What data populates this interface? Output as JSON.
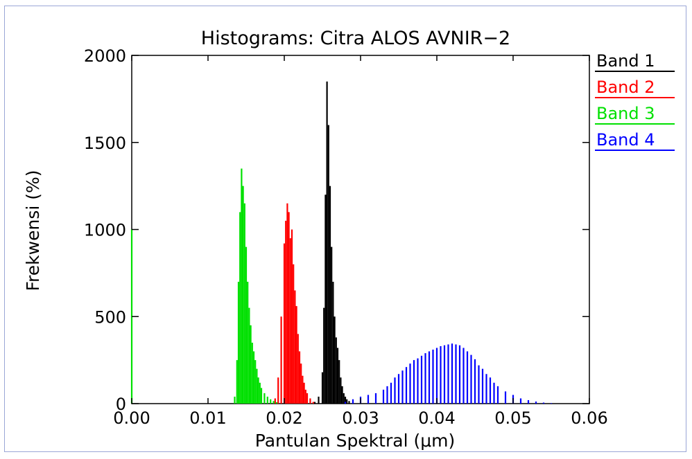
{
  "chart_data": {
    "type": "bar",
    "title": "Histograms: Citra ALOS AVNIR−2",
    "xlabel": "Pantulan Spektral (μm)",
    "ylabel": "Frekwensi (%)",
    "xlim": [
      0.0,
      0.06
    ],
    "ylim": [
      0,
      2000
    ],
    "x_ticks": [
      "0.00",
      "0.01",
      "0.02",
      "0.03",
      "0.04",
      "0.05",
      "0.06"
    ],
    "y_ticks": [
      "0",
      "500",
      "1000",
      "1500",
      "2000"
    ],
    "legend_position": "right, outside top",
    "series": [
      {
        "name": "Band 1",
        "color": "#000000",
        "x": [
          0.024,
          0.0245,
          0.025,
          0.0252,
          0.0254,
          0.0256,
          0.0258,
          0.026,
          0.0262,
          0.0264,
          0.0266,
          0.0268,
          0.027,
          0.0272,
          0.0274,
          0.0276,
          0.0278,
          0.028,
          0.0282,
          0.0285,
          0.029
        ],
        "values": [
          10,
          40,
          180,
          550,
          1200,
          1850,
          1600,
          1250,
          900,
          700,
          500,
          380,
          320,
          250,
          150,
          100,
          60,
          40,
          25,
          15,
          5
        ]
      },
      {
        "name": "Band 2",
        "color": "#ff0000",
        "x": [
          0.0188,
          0.0192,
          0.0196,
          0.02,
          0.0202,
          0.0204,
          0.0206,
          0.0208,
          0.021,
          0.0212,
          0.0214,
          0.0216,
          0.0218,
          0.022,
          0.0222,
          0.0224,
          0.0226,
          0.0228,
          0.023,
          0.0234,
          0.0238
        ],
        "values": [
          30,
          150,
          500,
          920,
          1050,
          1150,
          1100,
          950,
          1000,
          800,
          650,
          560,
          400,
          300,
          230,
          160,
          120,
          80,
          60,
          30,
          10
        ]
      },
      {
        "name": "Band 3",
        "color": "#00e000",
        "x": [
          0.0,
          0.0135,
          0.0138,
          0.014,
          0.0142,
          0.0144,
          0.0146,
          0.0148,
          0.015,
          0.0152,
          0.0154,
          0.0156,
          0.0158,
          0.016,
          0.0162,
          0.0164,
          0.0166,
          0.0168,
          0.017,
          0.0174,
          0.0178,
          0.0182,
          0.0186,
          0.019
        ],
        "values": [
          1000,
          40,
          250,
          700,
          1100,
          1350,
          1250,
          1150,
          900,
          700,
          550,
          450,
          350,
          300,
          250,
          200,
          150,
          120,
          90,
          60,
          40,
          25,
          15,
          8
        ]
      },
      {
        "name": "Band 4",
        "color": "#0000ff",
        "x": [
          0.028,
          0.029,
          0.03,
          0.031,
          0.032,
          0.033,
          0.0335,
          0.034,
          0.0345,
          0.035,
          0.0355,
          0.036,
          0.0365,
          0.037,
          0.0375,
          0.038,
          0.0385,
          0.039,
          0.0395,
          0.04,
          0.0405,
          0.041,
          0.0415,
          0.042,
          0.0425,
          0.043,
          0.0435,
          0.044,
          0.0445,
          0.045,
          0.0455,
          0.046,
          0.0465,
          0.047,
          0.0475,
          0.048,
          0.049,
          0.05,
          0.051,
          0.052,
          0.053,
          0.054,
          0.055
        ],
        "values": [
          10,
          25,
          40,
          50,
          60,
          80,
          100,
          120,
          150,
          170,
          190,
          210,
          230,
          250,
          260,
          275,
          290,
          300,
          310,
          320,
          330,
          335,
          340,
          345,
          340,
          335,
          320,
          300,
          280,
          255,
          220,
          200,
          170,
          150,
          120,
          100,
          70,
          50,
          30,
          20,
          12,
          6,
          3
        ]
      }
    ]
  }
}
